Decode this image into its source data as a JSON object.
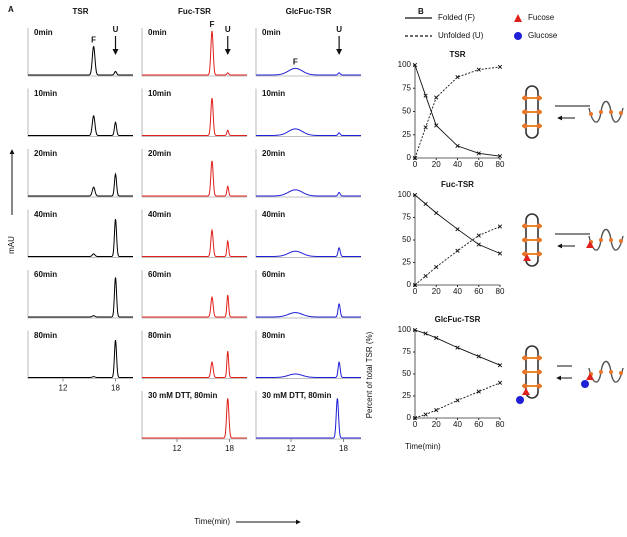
{
  "panel_a": {
    "label": "A",
    "y_label": "mAU",
    "x_label": "Time(min)",
    "xlim": [
      8,
      20
    ],
    "xticks": [
      12,
      18
    ],
    "columns": [
      {
        "title": "TSR",
        "color": "#000000",
        "cells": [
          {
            "label": "0min",
            "peaks": [
              {
                "rt": 15.5,
                "height": 0.65,
                "width": 0.15,
                "label": "F"
              },
              {
                "rt": 18,
                "height": 0.08,
                "width": 0.12,
                "label": "U"
              }
            ]
          },
          {
            "label": "10min",
            "peaks": [
              {
                "rt": 15.5,
                "height": 0.45,
                "width": 0.15
              },
              {
                "rt": 18,
                "height": 0.3,
                "width": 0.12
              }
            ]
          },
          {
            "label": "20min",
            "peaks": [
              {
                "rt": 15.5,
                "height": 0.2,
                "width": 0.15
              },
              {
                "rt": 18,
                "height": 0.5,
                "width": 0.12
              }
            ]
          },
          {
            "label": "40min",
            "peaks": [
              {
                "rt": 15.5,
                "height": 0.06,
                "width": 0.15
              },
              {
                "rt": 18,
                "height": 0.85,
                "width": 0.12
              }
            ]
          },
          {
            "label": "60min",
            "peaks": [
              {
                "rt": 15.5,
                "height": 0.03,
                "width": 0.15
              },
              {
                "rt": 18,
                "height": 0.9,
                "width": 0.12
              }
            ]
          },
          {
            "label": "80min",
            "peaks": [
              {
                "rt": 15.5,
                "height": 0.02,
                "width": 0.15
              },
              {
                "rt": 18,
                "height": 0.85,
                "width": 0.12
              }
            ]
          }
        ]
      },
      {
        "title": "Fuc-TSR",
        "color": "#e0201b",
        "cells": [
          {
            "label": "0min",
            "peaks": [
              {
                "rt": 16,
                "height": 1.0,
                "width": 0.13,
                "label": "F"
              },
              {
                "rt": 17.8,
                "height": 0.05,
                "width": 0.1,
                "label": "U"
              }
            ]
          },
          {
            "label": "10min",
            "peaks": [
              {
                "rt": 16,
                "height": 0.85,
                "width": 0.13
              },
              {
                "rt": 17.8,
                "height": 0.12,
                "width": 0.1
              }
            ]
          },
          {
            "label": "20min",
            "peaks": [
              {
                "rt": 16,
                "height": 0.8,
                "width": 0.13
              },
              {
                "rt": 17.8,
                "height": 0.22,
                "width": 0.1
              }
            ]
          },
          {
            "label": "40min",
            "peaks": [
              {
                "rt": 16,
                "height": 0.6,
                "width": 0.13
              },
              {
                "rt": 17.8,
                "height": 0.35,
                "width": 0.1
              }
            ]
          },
          {
            "label": "60min",
            "peaks": [
              {
                "rt": 16,
                "height": 0.45,
                "width": 0.13
              },
              {
                "rt": 17.8,
                "height": 0.5,
                "width": 0.1
              }
            ]
          },
          {
            "label": "80min",
            "peaks": [
              {
                "rt": 16,
                "height": 0.35,
                "width": 0.13
              },
              {
                "rt": 17.8,
                "height": 0.6,
                "width": 0.1
              }
            ]
          },
          {
            "label": "30 mM DTT, 80min",
            "peaks": [
              {
                "rt": 17.8,
                "height": 0.9,
                "width": 0.13
              }
            ]
          }
        ]
      },
      {
        "title": "GlcFuc-TSR",
        "color": "#1f1fd6",
        "cells": [
          {
            "label": "0min",
            "peaks": [
              {
                "rt": 12.5,
                "height": 0.15,
                "width": 0.8,
                "label": "F"
              },
              {
                "rt": 17.5,
                "height": 0.05,
                "width": 0.12,
                "label": "U"
              }
            ]
          },
          {
            "label": "10min",
            "peaks": [
              {
                "rt": 12.5,
                "height": 0.15,
                "width": 0.8
              },
              {
                "rt": 17.5,
                "height": 0.06,
                "width": 0.12
              }
            ]
          },
          {
            "label": "20min",
            "peaks": [
              {
                "rt": 12.5,
                "height": 0.14,
                "width": 0.8
              },
              {
                "rt": 17.5,
                "height": 0.08,
                "width": 0.12
              }
            ]
          },
          {
            "label": "40min",
            "peaks": [
              {
                "rt": 12.5,
                "height": 0.12,
                "width": 0.8
              },
              {
                "rt": 17.5,
                "height": 0.2,
                "width": 0.12
              }
            ]
          },
          {
            "label": "60min",
            "peaks": [
              {
                "rt": 12.5,
                "height": 0.1,
                "width": 0.8
              },
              {
                "rt": 17.5,
                "height": 0.3,
                "width": 0.12
              }
            ]
          },
          {
            "label": "80min",
            "peaks": [
              {
                "rt": 12.5,
                "height": 0.08,
                "width": 0.8
              },
              {
                "rt": 17.5,
                "height": 0.35,
                "width": 0.12
              }
            ]
          },
          {
            "label": "30 mM DTT, 80min",
            "peaks": [
              {
                "rt": 17.3,
                "height": 0.9,
                "width": 0.13
              }
            ]
          }
        ]
      }
    ]
  },
  "panel_b": {
    "label": "B",
    "y_label": "Percent of total TSR (%)",
    "x_label": "Time(min)",
    "sugars": [
      {
        "name": "Fucose",
        "color": "#e0201b"
      },
      {
        "name": "Glucose",
        "color": "#1f1fd6"
      }
    ],
    "charts": [
      {
        "type": "line",
        "title": "TSR",
        "x": [
          0,
          10,
          20,
          40,
          60,
          80
        ],
        "xlim": [
          0,
          80
        ],
        "ylim": [
          0,
          100
        ],
        "xticks": [
          0,
          20,
          40,
          60,
          80
        ],
        "yticks": [
          0,
          25,
          50,
          75,
          100
        ],
        "series": [
          {
            "name": "Folded (F)",
            "style": "solid",
            "values": [
              100,
              67,
              35,
              13,
              5,
              2
            ]
          },
          {
            "name": "Unfolded (U)",
            "style": "dashed",
            "values": [
              0,
              33,
              65,
              87,
              95,
              98
            ]
          }
        ]
      },
      {
        "type": "line",
        "title": "Fuc-TSR",
        "x": [
          0,
          10,
          20,
          40,
          60,
          80
        ],
        "xlim": [
          0,
          80
        ],
        "ylim": [
          0,
          100
        ],
        "xticks": [
          0,
          20,
          40,
          60,
          80
        ],
        "yticks": [
          0,
          25,
          50,
          75,
          100
        ],
        "series": [
          {
            "name": "Folded (F)",
            "style": "solid",
            "values": [
              100,
              90,
              80,
              62,
              45,
              35
            ]
          },
          {
            "name": "Unfolded (U)",
            "style": "dashed",
            "values": [
              0,
              10,
              20,
              38,
              55,
              65
            ]
          }
        ]
      },
      {
        "type": "line",
        "title": "GlcFuc-TSR",
        "x": [
          0,
          10,
          20,
          40,
          60,
          80
        ],
        "xlim": [
          0,
          80
        ],
        "ylim": [
          0,
          100
        ],
        "xticks": [
          0,
          20,
          40,
          60,
          80
        ],
        "yticks": [
          0,
          25,
          50,
          75,
          100
        ],
        "series": [
          {
            "name": "Folded (F)",
            "style": "solid",
            "values": [
              100,
              96,
              91,
              80,
              70,
              60
            ]
          },
          {
            "name": "Unfolded (U)",
            "style": "dashed",
            "values": [
              0,
              4,
              9,
              20,
              30,
              40
            ]
          }
        ]
      }
    ]
  }
}
